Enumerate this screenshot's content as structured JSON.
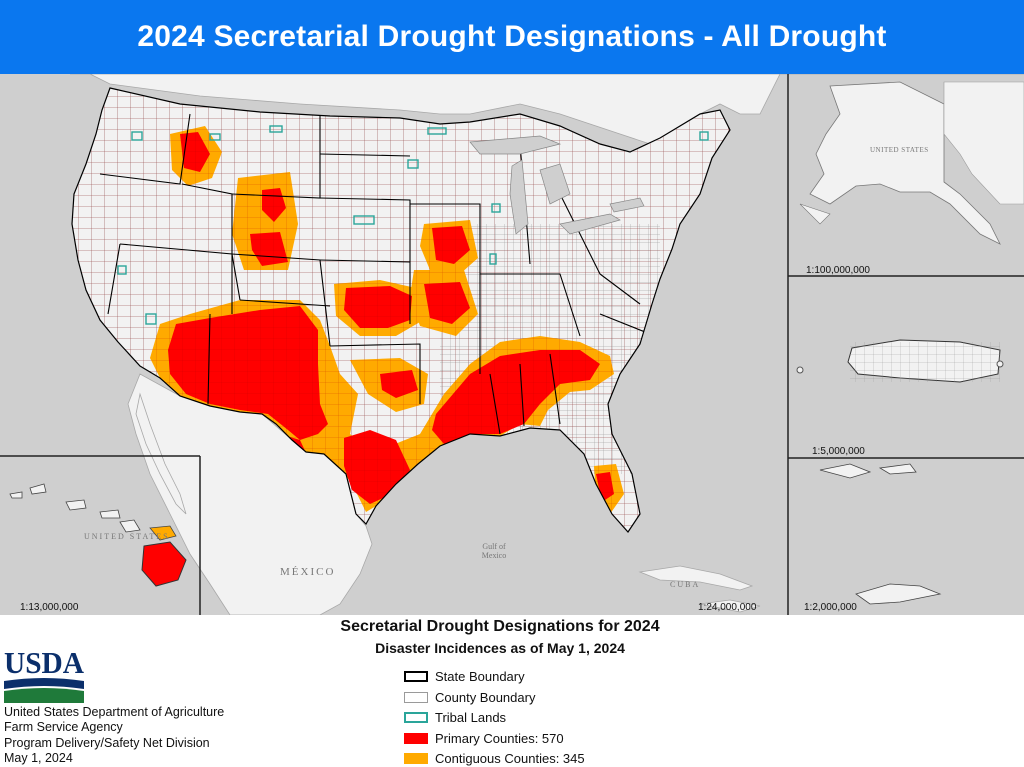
{
  "title": "2024 Secretarial Drought Designations - All Drought",
  "map": {
    "scales": {
      "alaska": "1:100,000,000",
      "puerto_rico": "1:5,000,000",
      "virgin_islands": "1:2,000,000",
      "hawaii": "1:13,000,000",
      "conus": "1:24,000,000"
    },
    "labels": {
      "mexico": "MÉXICO",
      "gulf": "Gulf of Mexico",
      "cuba": "CUBA",
      "united_states": "UNITED STATES",
      "alaska_us": "UNITED STATES"
    },
    "colors": {
      "ocean": "#cfcfcf",
      "land": "#f2f2f2",
      "primary": "#ff0000",
      "contiguous": "#ffaa00",
      "tribal": "#2aa59a"
    }
  },
  "legend": {
    "title": "Secretarial Drought Designations for 2024",
    "subtitle": "Disaster Incidences as of May 1, 2024",
    "items": [
      {
        "label": "State Boundary",
        "fill": "#ffffff",
        "stroke": "#000000"
      },
      {
        "label": "County Boundary",
        "fill": "#ffffff",
        "stroke": "#9a9a9a"
      },
      {
        "label": "Tribal Lands",
        "fill": "#ffffff",
        "stroke": "#2aa59a"
      },
      {
        "label": "Primary Counties: 570",
        "fill": "#ff0000",
        "stroke": "#ff0000"
      },
      {
        "label": "Contiguous Counties: 345",
        "fill": "#ffaa00",
        "stroke": "#ffaa00"
      }
    ]
  },
  "agency": {
    "logo": "USDA",
    "lines": [
      "United States Department of Agriculture",
      "Farm Service Agency",
      "Program Delivery/Safety Net Division",
      "May 1, 2024"
    ]
  }
}
